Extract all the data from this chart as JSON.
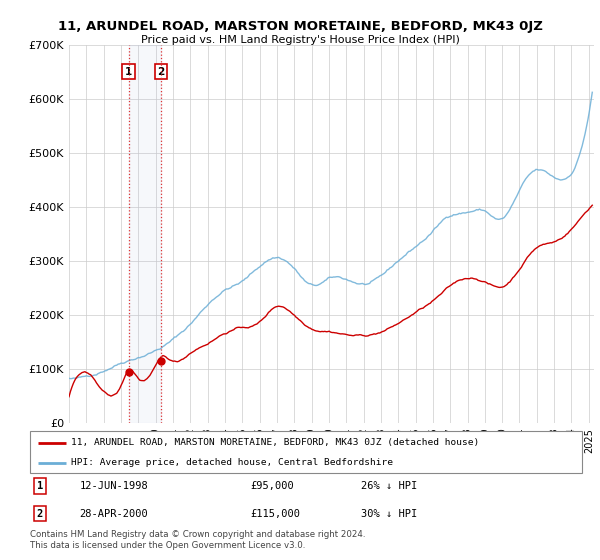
{
  "title": "11, ARUNDEL ROAD, MARSTON MORETAINE, BEDFORD, MK43 0JZ",
  "subtitle": "Price paid vs. HM Land Registry's House Price Index (HPI)",
  "ylim": [
    0,
    700000
  ],
  "yticks": [
    0,
    100000,
    200000,
    300000,
    400000,
    500000,
    600000,
    700000
  ],
  "ytick_labels": [
    "£0",
    "£100K",
    "£200K",
    "£300K",
    "£400K",
    "£500K",
    "£600K",
    "£700K"
  ],
  "xlim_start": 1995.0,
  "xlim_end": 2025.3,
  "legend_line1": "11, ARUNDEL ROAD, MARSTON MORETAINE, BEDFORD, MK43 0JZ (detached house)",
  "legend_line2": "HPI: Average price, detached house, Central Bedfordshire",
  "transaction1_date": "12-JUN-1998",
  "transaction1_price": "£95,000",
  "transaction1_hpi": "26% ↓ HPI",
  "transaction2_date": "28-APR-2000",
  "transaction2_price": "£115,000",
  "transaction2_hpi": "30% ↓ HPI",
  "footer": "Contains HM Land Registry data © Crown copyright and database right 2024.\nThis data is licensed under the Open Government Licence v3.0.",
  "red_color": "#cc0000",
  "blue_color": "#6baed6",
  "purchase1_x": 1998.44,
  "purchase1_y": 95000,
  "purchase2_x": 2000.32,
  "purchase2_y": 115000
}
